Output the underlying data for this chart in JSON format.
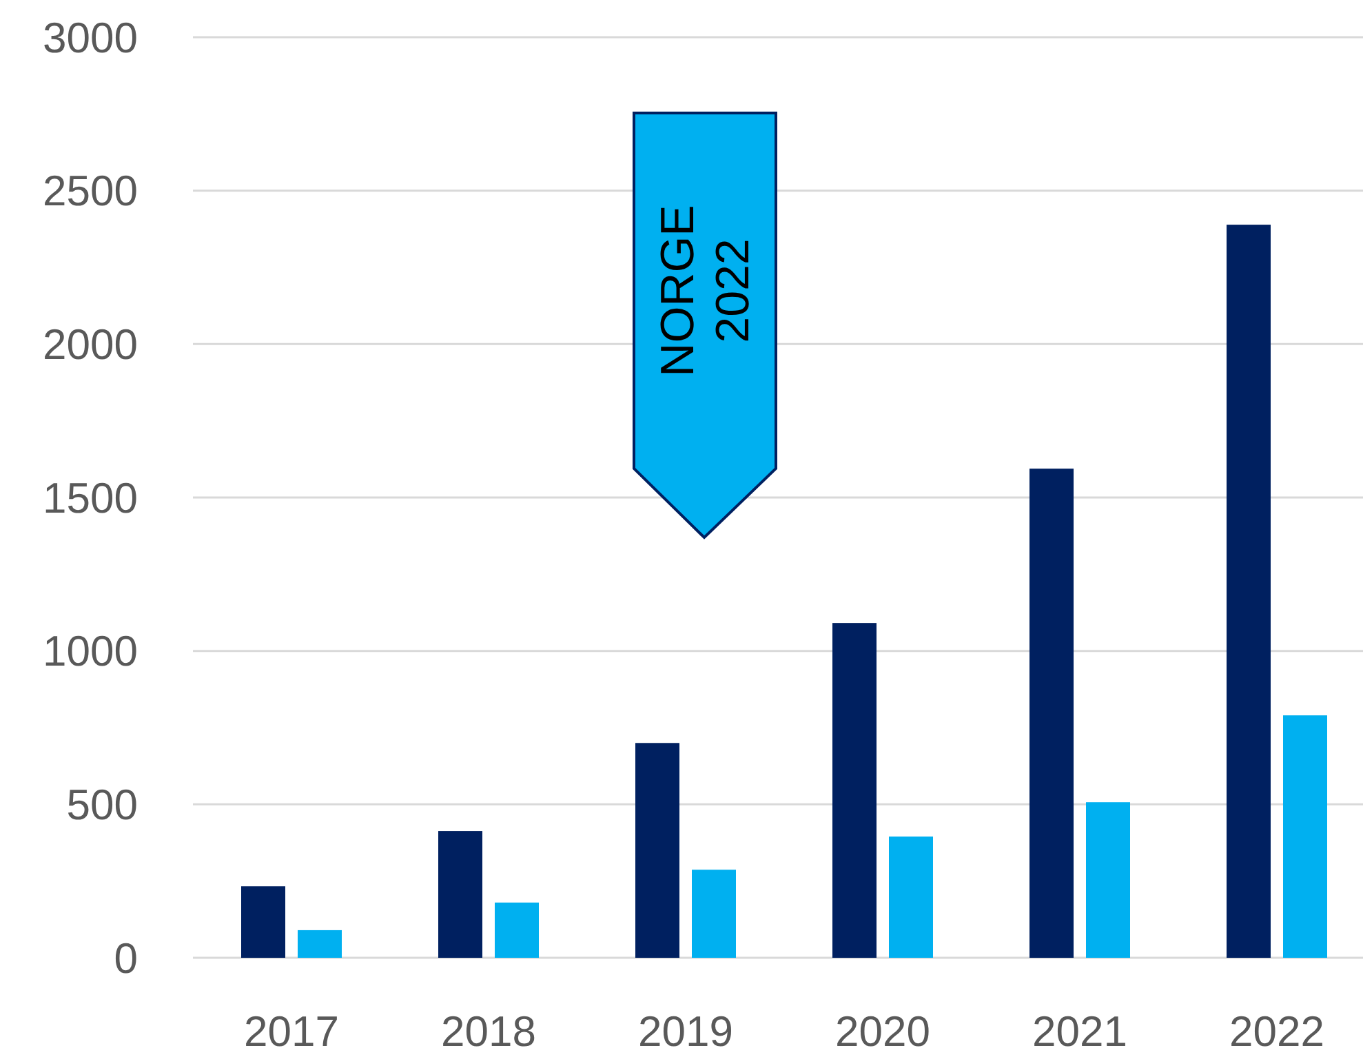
{
  "chart_data": {
    "type": "bar",
    "categories": [
      "2017",
      "2018",
      "2019",
      "2020",
      "2021",
      "2022"
    ],
    "series": [
      {
        "color": "#002060",
        "values": [
          233,
          413,
          700,
          1091,
          1594,
          2389
        ]
      },
      {
        "color": "#00b0f0",
        "values": [
          90,
          180,
          287,
          395,
          507,
          790
        ]
      }
    ],
    "ylim": [
      0,
      3000
    ],
    "yticks": [
      0,
      500,
      1000,
      1500,
      2000,
      2500,
      3000
    ],
    "grid": "y",
    "annotations": [
      "NORGE 2022"
    ]
  }
}
